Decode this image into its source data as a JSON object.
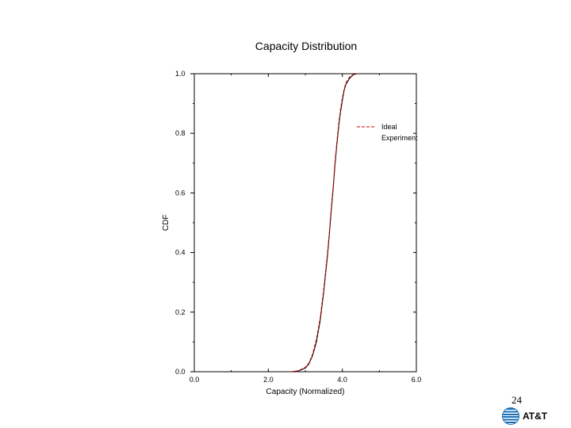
{
  "slide": {
    "page_number": "24",
    "logo_text": "AT&T"
  },
  "colors": {
    "ideal": "#cc0000",
    "experiment": "#000000",
    "axis": "#000000"
  },
  "chart_data": {
    "type": "line",
    "title": "Capacity Distribution",
    "xlabel": "Capacity (Normalized)",
    "ylabel": "CDF",
    "xlim": [
      0.0,
      6.0
    ],
    "ylim": [
      0.0,
      1.0
    ],
    "x_ticks": [
      "0.0",
      "2.0",
      "4.0",
      "6.0"
    ],
    "y_ticks": [
      "0.0",
      "0.2",
      "0.4",
      "0.6",
      "0.8",
      "1.0"
    ],
    "grid": false,
    "legend_position": "top-right",
    "series": [
      {
        "name": "Ideal",
        "style": "dashed",
        "x": [
          2.6,
          2.8,
          3.0,
          3.1,
          3.2,
          3.3,
          3.4,
          3.5,
          3.6,
          3.65,
          3.7,
          3.75,
          3.8,
          3.85,
          3.9,
          3.95,
          4.0,
          4.05,
          4.1,
          4.2,
          4.3,
          4.4
        ],
        "y": [
          0.0,
          0.003,
          0.015,
          0.03,
          0.06,
          0.11,
          0.18,
          0.28,
          0.4,
          0.47,
          0.55,
          0.62,
          0.7,
          0.77,
          0.83,
          0.88,
          0.92,
          0.95,
          0.97,
          0.99,
          0.998,
          1.0
        ]
      },
      {
        "name": "Experiment",
        "style": "solid",
        "x": [
          2.6,
          2.8,
          3.0,
          3.1,
          3.2,
          3.3,
          3.4,
          3.5,
          3.6,
          3.65,
          3.7,
          3.75,
          3.8,
          3.85,
          3.9,
          3.95,
          4.0,
          4.05,
          4.1,
          4.2,
          4.3,
          4.4
        ],
        "y": [
          0.0,
          0.002,
          0.012,
          0.027,
          0.055,
          0.1,
          0.17,
          0.27,
          0.39,
          0.46,
          0.54,
          0.61,
          0.69,
          0.76,
          0.82,
          0.87,
          0.91,
          0.945,
          0.965,
          0.985,
          0.997,
          1.0
        ]
      }
    ]
  }
}
